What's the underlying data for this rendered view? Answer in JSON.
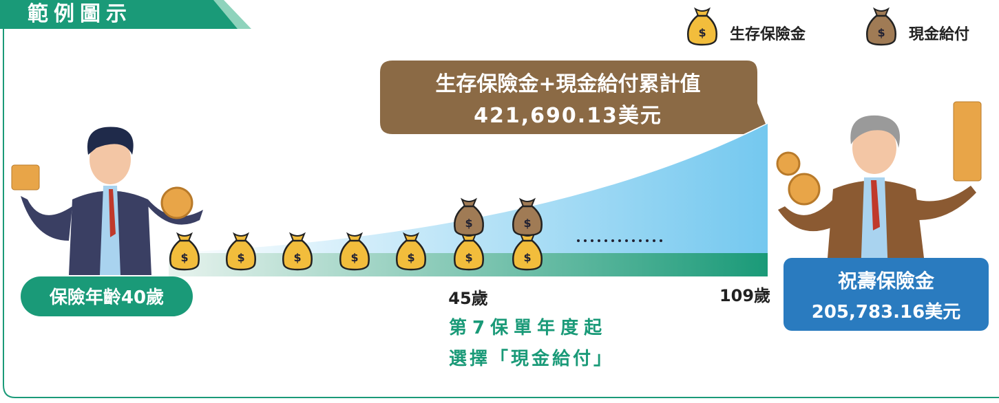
{
  "header": {
    "title": "範例圖示"
  },
  "legend": {
    "items": [
      "生存保險金",
      "現金給付"
    ]
  },
  "callout": {
    "title": "生存保險金+現金給付累計值",
    "value": "421,690.13美元"
  },
  "timeline": {
    "start_label": "保險年齡40歲",
    "mid_label": "45歲",
    "end_label": "109歲",
    "note": [
      "第7保單年度起",
      "選擇「現金給付」"
    ]
  },
  "maturity": {
    "title": "祝壽保險金",
    "value": "205,783.16美元"
  }
}
